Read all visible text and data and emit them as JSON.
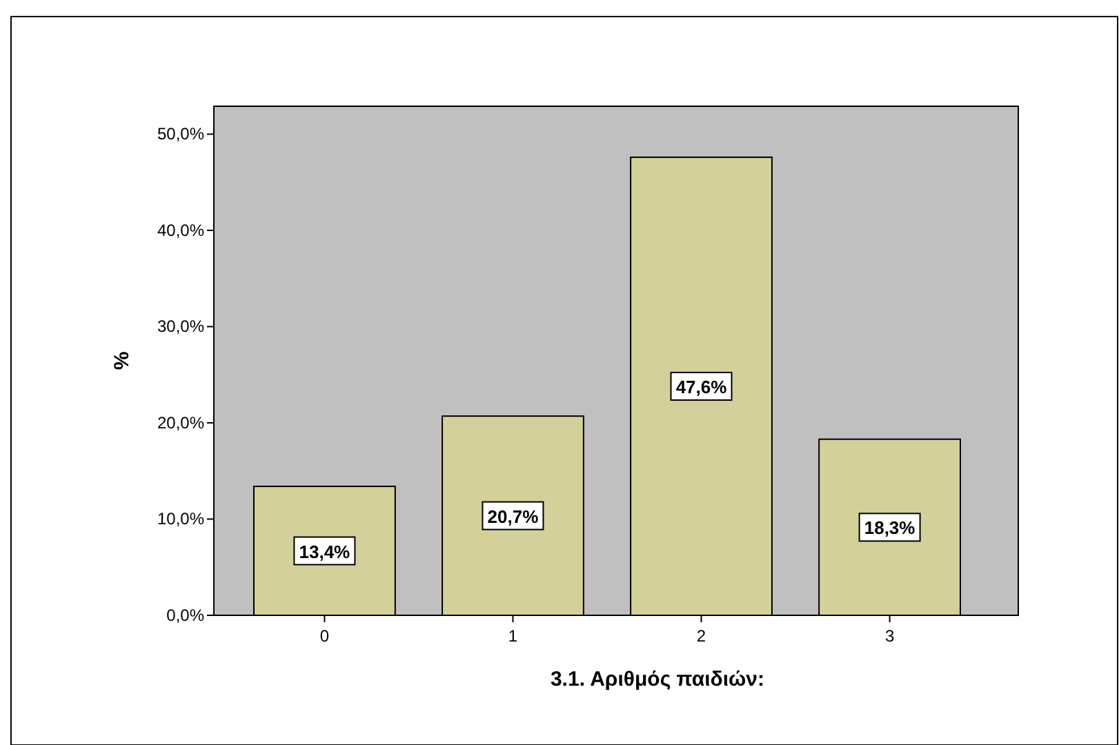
{
  "chart_data": {
    "type": "bar",
    "xlabel": "3.1. Αριθμός παιδιών:",
    "ylabel": "%",
    "categories": [
      "0",
      "1",
      "2",
      "3"
    ],
    "values": [
      13.4,
      20.7,
      47.6,
      18.3
    ],
    "value_labels": [
      "13,4%",
      "20,7%",
      "47,6%",
      "18,3%"
    ],
    "color": "#d4d09a",
    "ylim": [
      0,
      52.9
    ],
    "yticks": [
      {
        "value": 0,
        "label": "0,0%"
      },
      {
        "value": 10,
        "label": "10,0%"
      },
      {
        "value": 20,
        "label": "20,0%"
      },
      {
        "value": 30,
        "label": "30,0%"
      },
      {
        "value": 40,
        "label": "40,0%"
      },
      {
        "value": 50,
        "label": "50,0%"
      }
    ]
  }
}
